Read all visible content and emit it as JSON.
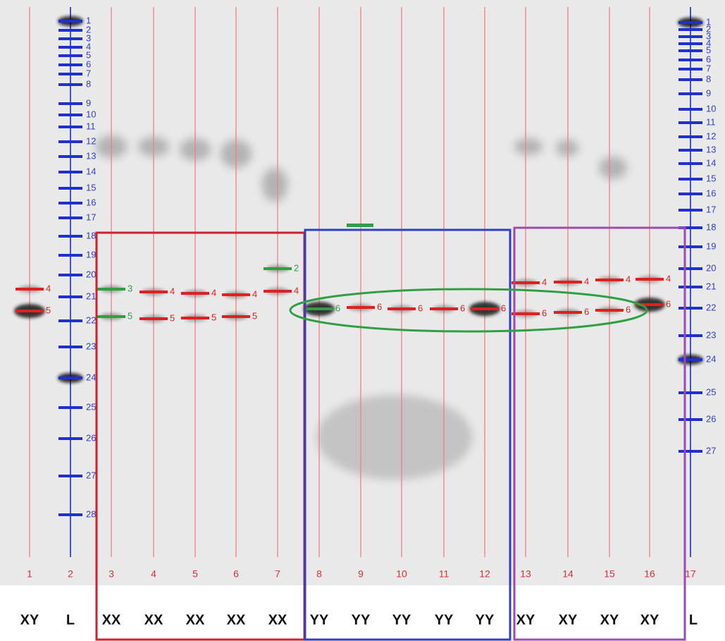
{
  "lanes": [
    {
      "number": "1",
      "genotype": "XY",
      "bands": [
        "4",
        "5"
      ]
    },
    {
      "number": "2",
      "genotype": "L",
      "bands": []
    },
    {
      "number": "3",
      "genotype": "XX",
      "bands": [
        "3",
        "5"
      ]
    },
    {
      "number": "4",
      "genotype": "XX",
      "bands": [
        "4",
        "5"
      ]
    },
    {
      "number": "5",
      "genotype": "XX",
      "bands": [
        "4",
        "5"
      ]
    },
    {
      "number": "6",
      "genotype": "XX",
      "bands": [
        "4",
        "5"
      ]
    },
    {
      "number": "7",
      "genotype": "XX",
      "bands": [
        "2",
        "4"
      ]
    },
    {
      "number": "8",
      "genotype": "YY",
      "bands": [
        "6"
      ]
    },
    {
      "number": "9",
      "genotype": "YY",
      "bands": [
        "6"
      ]
    },
    {
      "number": "10",
      "genotype": "YY",
      "bands": [
        "6"
      ]
    },
    {
      "number": "11",
      "genotype": "YY",
      "bands": [
        "6"
      ]
    },
    {
      "number": "12",
      "genotype": "YY",
      "bands": [
        "6"
      ]
    },
    {
      "number": "13",
      "genotype": "XY",
      "bands": [
        "4",
        "6"
      ]
    },
    {
      "number": "14",
      "genotype": "XY",
      "bands": [
        "4",
        "6"
      ]
    },
    {
      "number": "15",
      "genotype": "XY",
      "bands": [
        "4",
        "6"
      ]
    },
    {
      "number": "16",
      "genotype": "XY",
      "bands": [
        "4",
        "6"
      ]
    },
    {
      "number": "17",
      "genotype": "L",
      "bands": []
    }
  ],
  "ladder_left": [
    "1",
    "2",
    "3",
    "4",
    "5",
    "6",
    "7",
    "8",
    "9",
    "10",
    "11",
    "12",
    "13",
    "14",
    "15",
    "16",
    "17",
    "18",
    "19",
    "20",
    "21",
    "22",
    "23",
    "24",
    "25",
    "26",
    "27",
    "28"
  ],
  "ladder_right": [
    "1",
    "2",
    "3",
    "4",
    "5",
    "6",
    "7",
    "8",
    "9",
    "10",
    "11",
    "12",
    "13",
    "14",
    "15",
    "16",
    "17",
    "18",
    "19",
    "20",
    "21",
    "22",
    "23",
    "24",
    "25",
    "26",
    "27"
  ]
}
